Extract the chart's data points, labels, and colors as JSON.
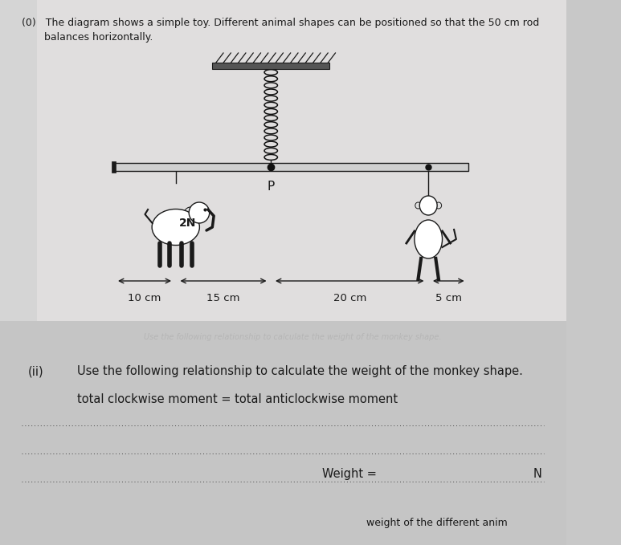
{
  "bg_color": "#c8c8c8",
  "paper_color": "#dcdcdc",
  "title_part1": "(0)   The diagram shows a simple toy. Different animal shapes can be positioned so that the 50 cm rod",
  "title_part2": "       balances horizontally.",
  "question_ii_label": "(ii)",
  "question_ii_text": "Use the following relationship to calculate the weight of the monkey shape.",
  "equation_text": "total clockwise moment = total anticlockwise moment",
  "weight_label": "Weight = ",
  "weight_unit": "N",
  "pivot_label": "P",
  "elephant_weight": "2N",
  "dim_10cm": "10 cm",
  "dim_15cm": "15 cm",
  "dim_20cm": "20 cm",
  "dim_5cm": "5 cm",
  "text_color": "#1a1a1a",
  "line_color": "#1a1a1a",
  "rod_color": "#d0d0d0",
  "spring_color": "#111111",
  "ceiling_bar_color": "#555555"
}
